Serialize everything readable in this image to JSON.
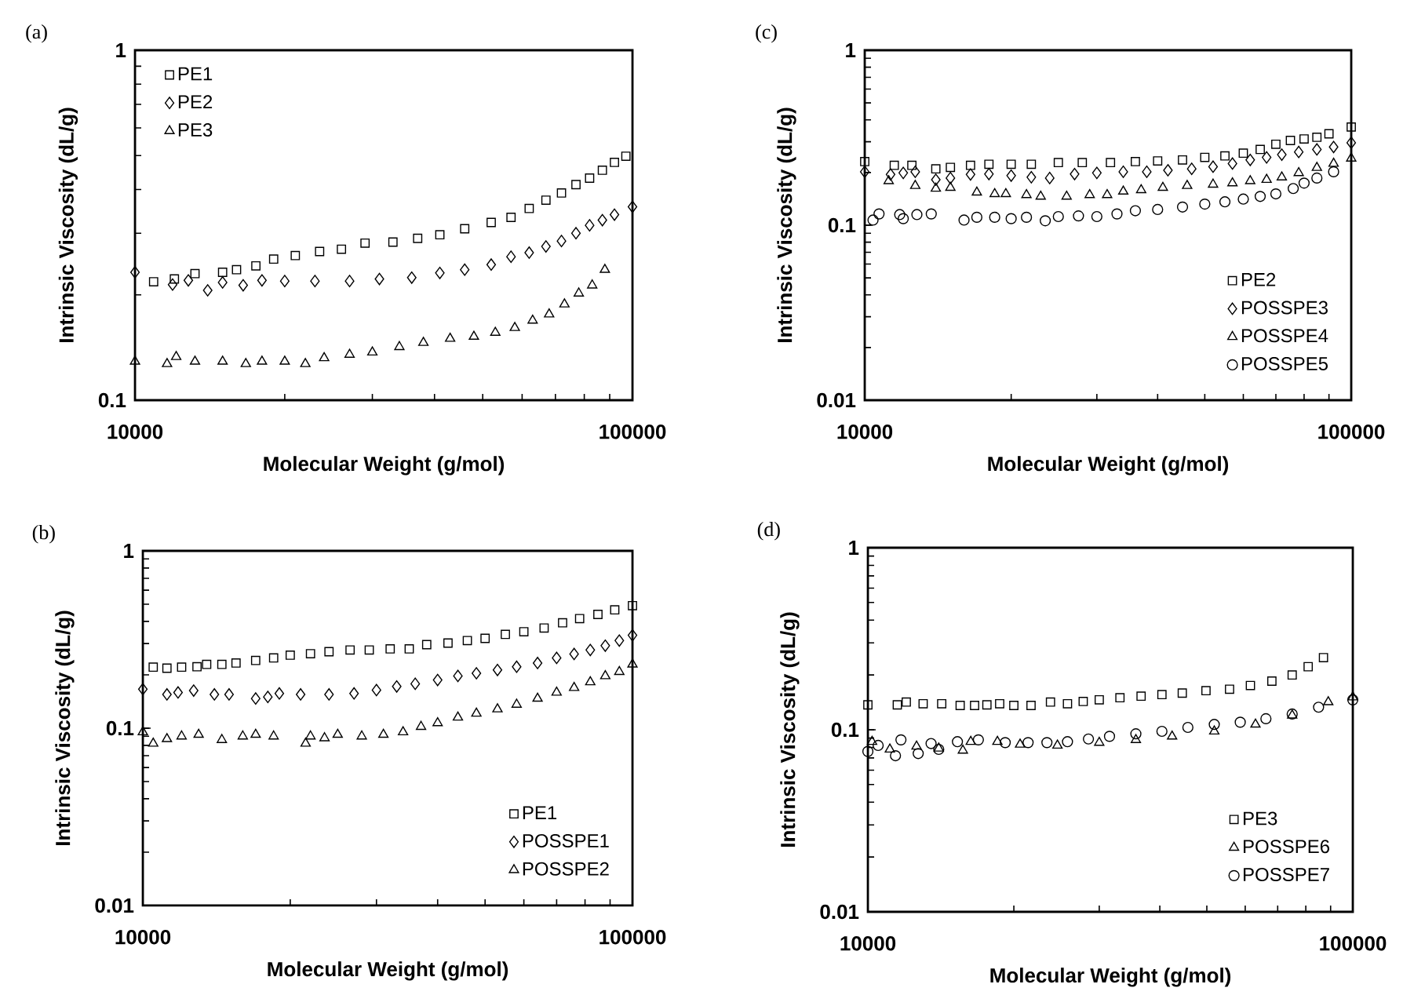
{
  "chart_data": [
    {
      "type": "scatter",
      "title": "(a)",
      "xlabel": "Molecular Weight (g/mol)",
      "ylabel": "Intrinsic Viscosity (dL/g)",
      "log": "xy",
      "xlim": [
        10000,
        100000
      ],
      "ylim": [
        0.1,
        1
      ],
      "xticks": [
        10000,
        100000
      ],
      "yticks": [
        0.1,
        1
      ],
      "legend": "top left",
      "series": [
        {
          "name": "PE1",
          "color": "#000000",
          "marker": "square",
          "x": [
            10900,
            12000,
            13200,
            15000,
            16000,
            17500,
            19000,
            21000,
            23500,
            26000,
            29000,
            33000,
            37000,
            41000,
            46000,
            52000,
            57000,
            62000,
            67000,
            72000,
            77000,
            82000,
            87000,
            92000,
            97000
          ],
          "values": [
            0.218,
            0.222,
            0.23,
            0.232,
            0.236,
            0.242,
            0.253,
            0.259,
            0.266,
            0.27,
            0.281,
            0.283,
            0.29,
            0.297,
            0.309,
            0.322,
            0.333,
            0.353,
            0.373,
            0.391,
            0.413,
            0.431,
            0.454,
            0.478,
            0.498
          ]
        },
        {
          "name": "PE2",
          "color": "#000000",
          "marker": "diamond",
          "x": [
            10000,
            11900,
            12800,
            14000,
            15000,
            16500,
            18000,
            20000,
            23000,
            27000,
            31000,
            36000,
            41000,
            46000,
            52000,
            57000,
            62000,
            67000,
            72000,
            77000,
            82000,
            87000,
            92000,
            100000
          ],
          "values": [
            0.232,
            0.214,
            0.22,
            0.206,
            0.217,
            0.213,
            0.22,
            0.219,
            0.219,
            0.219,
            0.222,
            0.224,
            0.231,
            0.236,
            0.244,
            0.257,
            0.264,
            0.275,
            0.285,
            0.3,
            0.316,
            0.327,
            0.339,
            0.357
          ]
        },
        {
          "name": "PE3",
          "color": "#000000",
          "marker": "triangle",
          "x": [
            10000,
            11600,
            12100,
            13200,
            15000,
            16700,
            18000,
            20000,
            22000,
            24000,
            27000,
            30000,
            34000,
            38000,
            43000,
            48000,
            53000,
            58000,
            63000,
            68000,
            73000,
            78000,
            83000,
            88000
          ],
          "values": [
            0.129,
            0.127,
            0.133,
            0.129,
            0.129,
            0.127,
            0.129,
            0.129,
            0.127,
            0.132,
            0.135,
            0.137,
            0.142,
            0.146,
            0.15,
            0.152,
            0.156,
            0.161,
            0.169,
            0.176,
            0.188,
            0.202,
            0.213,
            0.236
          ]
        }
      ]
    },
    {
      "type": "scatter",
      "title": "(c)",
      "xlabel": "Molecular Weight (g/mol)",
      "ylabel": "Intrinsic Viscosity (dL/g)",
      "log": "xy",
      "xlim": [
        10000,
        100000
      ],
      "ylim": [
        0.01,
        1
      ],
      "xticks": [
        10000,
        100000
      ],
      "yticks": [
        0.01,
        0.1,
        1
      ],
      "legend": "bottom right",
      "series": [
        {
          "name": "PE2",
          "color": "#000000",
          "marker": "square",
          "x": [
            10000,
            11500,
            12500,
            14000,
            15000,
            16500,
            18000,
            20000,
            22000,
            25000,
            28000,
            32000,
            36000,
            40000,
            45000,
            50000,
            55000,
            60000,
            65000,
            70000,
            75000,
            80000,
            85000,
            90000,
            100000
          ],
          "values": [
            0.231,
            0.22,
            0.22,
            0.21,
            0.214,
            0.22,
            0.223,
            0.223,
            0.223,
            0.228,
            0.228,
            0.228,
            0.231,
            0.233,
            0.236,
            0.244,
            0.249,
            0.258,
            0.271,
            0.29,
            0.305,
            0.311,
            0.318,
            0.333,
            0.364
          ]
        },
        {
          "name": "POSSPE3",
          "color": "#000000",
          "marker": "diamond",
          "x": [
            10000,
            11300,
            12000,
            12700,
            14000,
            15000,
            16500,
            18000,
            20000,
            22000,
            24000,
            27000,
            30000,
            34000,
            38000,
            42000,
            47000,
            52000,
            57000,
            62000,
            67000,
            72000,
            78000,
            85000,
            92000,
            100000
          ],
          "values": [
            0.202,
            0.195,
            0.199,
            0.202,
            0.182,
            0.186,
            0.195,
            0.196,
            0.192,
            0.188,
            0.186,
            0.196,
            0.199,
            0.202,
            0.202,
            0.206,
            0.21,
            0.216,
            0.225,
            0.236,
            0.244,
            0.253,
            0.262,
            0.271,
            0.28,
            0.296
          ]
        },
        {
          "name": "POSSPE4",
          "color": "#000000",
          "marker": "triangle",
          "x": [
            11200,
            12700,
            14000,
            15000,
            17000,
            18500,
            19500,
            21500,
            23000,
            26000,
            29000,
            31500,
            34000,
            37000,
            41000,
            46000,
            52000,
            57000,
            62000,
            67000,
            72000,
            78000,
            85000,
            92000,
            100000
          ],
          "values": [
            0.179,
            0.168,
            0.162,
            0.164,
            0.154,
            0.151,
            0.151,
            0.149,
            0.146,
            0.146,
            0.149,
            0.149,
            0.156,
            0.159,
            0.164,
            0.168,
            0.171,
            0.174,
            0.179,
            0.182,
            0.188,
            0.199,
            0.213,
            0.225,
            0.241
          ]
        },
        {
          "name": "POSSPE5",
          "color": "#000000",
          "marker": "circle",
          "x": [
            10400,
            10700,
            11800,
            12000,
            12800,
            13700,
            16000,
            17000,
            18500,
            20000,
            21500,
            23500,
            25000,
            27500,
            30000,
            33000,
            36000,
            40000,
            45000,
            50000,
            55000,
            60000,
            65000,
            70000,
            76000,
            80000,
            85000,
            92000
          ],
          "values": [
            0.107,
            0.116,
            0.115,
            0.109,
            0.115,
            0.116,
            0.107,
            0.111,
            0.111,
            0.109,
            0.111,
            0.106,
            0.112,
            0.113,
            0.112,
            0.116,
            0.121,
            0.123,
            0.127,
            0.132,
            0.136,
            0.141,
            0.146,
            0.151,
            0.162,
            0.174,
            0.186,
            0.202
          ]
        }
      ]
    },
    {
      "type": "scatter",
      "title": "(b)",
      "xlabel": "Molecular Weight (g/mol)",
      "ylabel": "Intrinsic Viscosity (dL/g)",
      "log": "xy",
      "xlim": [
        10000,
        100000
      ],
      "ylim": [
        0.01,
        1
      ],
      "xticks": [
        10000,
        100000
      ],
      "yticks": [
        0.01,
        0.1,
        1
      ],
      "legend": "bottom right",
      "series": [
        {
          "name": "PE1",
          "color": "#000000",
          "marker": "square",
          "x": [
            10500,
            11200,
            12000,
            12900,
            13500,
            14500,
            15500,
            17000,
            18500,
            20000,
            22000,
            24000,
            26500,
            29000,
            32000,
            35000,
            38000,
            42000,
            46000,
            50000,
            55000,
            60000,
            66000,
            72000,
            78000,
            85000,
            92000,
            100000
          ],
          "values": [
            0.221,
            0.218,
            0.221,
            0.222,
            0.229,
            0.229,
            0.233,
            0.241,
            0.249,
            0.258,
            0.263,
            0.27,
            0.276,
            0.276,
            0.28,
            0.28,
            0.296,
            0.302,
            0.312,
            0.321,
            0.338,
            0.35,
            0.367,
            0.393,
            0.415,
            0.438,
            0.465,
            0.491
          ]
        },
        {
          "name": "POSSPE1",
          "color": "#000000",
          "marker": "diamond",
          "x": [
            10000,
            11200,
            11800,
            12700,
            14000,
            15000,
            17000,
            18000,
            19000,
            21000,
            24000,
            27000,
            30000,
            33000,
            36000,
            40000,
            44000,
            48000,
            53000,
            58000,
            64000,
            70000,
            76000,
            82000,
            88000,
            94000,
            100000
          ],
          "values": [
            0.166,
            0.155,
            0.159,
            0.163,
            0.155,
            0.155,
            0.147,
            0.15,
            0.157,
            0.155,
            0.155,
            0.157,
            0.164,
            0.172,
            0.178,
            0.187,
            0.197,
            0.204,
            0.213,
            0.222,
            0.233,
            0.249,
            0.262,
            0.276,
            0.292,
            0.312,
            0.334
          ]
        },
        {
          "name": "POSSPE2",
          "color": "#000000",
          "marker": "triangle",
          "x": [
            10000,
            10500,
            11200,
            12000,
            13000,
            14500,
            16000,
            17000,
            18500,
            21500,
            22000,
            23500,
            25000,
            28000,
            31000,
            34000,
            37000,
            40000,
            44000,
            48000,
            53000,
            58000,
            64000,
            70000,
            76000,
            82000,
            88000,
            94000,
            100000
          ],
          "values": [
            0.095,
            0.082,
            0.087,
            0.09,
            0.092,
            0.086,
            0.09,
            0.092,
            0.09,
            0.082,
            0.09,
            0.088,
            0.092,
            0.09,
            0.092,
            0.095,
            0.102,
            0.107,
            0.115,
            0.121,
            0.128,
            0.136,
            0.147,
            0.159,
            0.169,
            0.182,
            0.197,
            0.208,
            0.229
          ]
        }
      ]
    },
    {
      "type": "scatter",
      "title": "(d)",
      "xlabel": "Molecular Weight (g/mol)",
      "ylabel": "Intrinsic Viscosity (dL/g)",
      "log": "xy",
      "xlim": [
        10000,
        100000
      ],
      "ylim": [
        0.01,
        1
      ],
      "xticks": [
        10000,
        100000
      ],
      "yticks": [
        0.01,
        0.1,
        1
      ],
      "legend": "bottom right",
      "series": [
        {
          "name": "PE3",
          "color": "#000000",
          "marker": "square",
          "x": [
            10000,
            11500,
            12000,
            13000,
            14200,
            15500,
            16600,
            17600,
            18700,
            20000,
            21700,
            23800,
            25800,
            27800,
            30000,
            33100,
            36600,
            40400,
            44500,
            49800,
            55700,
            61500,
            68100,
            75000,
            80900,
            87000
          ],
          "values": [
            0.137,
            0.137,
            0.142,
            0.139,
            0.139,
            0.136,
            0.136,
            0.137,
            0.139,
            0.136,
            0.136,
            0.142,
            0.139,
            0.143,
            0.146,
            0.15,
            0.153,
            0.156,
            0.159,
            0.164,
            0.167,
            0.175,
            0.185,
            0.2,
            0.222,
            0.249
          ]
        },
        {
          "name": "POSSPE6",
          "color": "#000000",
          "marker": "triangle",
          "x": [
            10200,
            11100,
            12600,
            14000,
            15700,
            16300,
            18500,
            20600,
            24600,
            30000,
            35700,
            42400,
            51800,
            63000,
            75000,
            89000,
            100000
          ],
          "values": [
            0.086,
            0.078,
            0.081,
            0.079,
            0.077,
            0.086,
            0.086,
            0.083,
            0.082,
            0.085,
            0.088,
            0.092,
            0.098,
            0.107,
            0.12,
            0.142,
            0.151
          ]
        },
        {
          "name": "POSSPE7",
          "color": "#000000",
          "marker": "circle",
          "x": [
            10000,
            10500,
            11400,
            11700,
            12700,
            13500,
            14000,
            15300,
            16900,
            19200,
            21400,
            23400,
            25800,
            28500,
            31500,
            35700,
            40400,
            45700,
            51800,
            58600,
            66200,
            75000,
            85000,
            100000
          ],
          "values": [
            0.076,
            0.082,
            0.072,
            0.088,
            0.074,
            0.084,
            0.078,
            0.086,
            0.088,
            0.085,
            0.085,
            0.085,
            0.086,
            0.089,
            0.092,
            0.095,
            0.098,
            0.103,
            0.107,
            0.11,
            0.115,
            0.122,
            0.133,
            0.146
          ]
        }
      ]
    }
  ]
}
